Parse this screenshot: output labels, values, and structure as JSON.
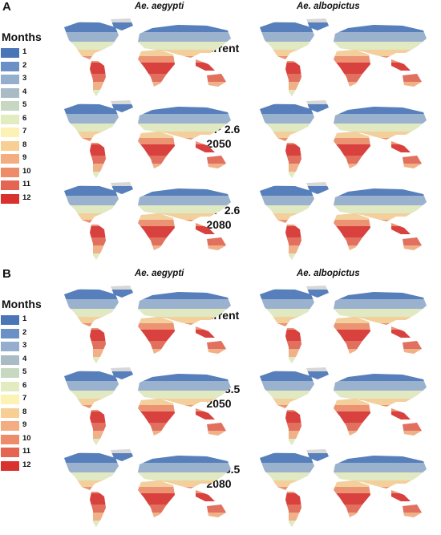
{
  "legend": {
    "title": "Months",
    "items": [
      {
        "label": "1",
        "color": "#4a76b8"
      },
      {
        "label": "2",
        "color": "#6b90c6"
      },
      {
        "label": "3",
        "color": "#95aece"
      },
      {
        "label": "4",
        "color": "#a9bcc6"
      },
      {
        "label": "5",
        "color": "#c6d8c1"
      },
      {
        "label": "6",
        "color": "#e3ecc0"
      },
      {
        "label": "7",
        "color": "#fbf2b4"
      },
      {
        "label": "8",
        "color": "#f7cf95"
      },
      {
        "label": "9",
        "color": "#f4ad80"
      },
      {
        "label": "10",
        "color": "#ee8c69"
      },
      {
        "label": "11",
        "color": "#e46552"
      },
      {
        "label": "12",
        "color": "#d9312e"
      }
    ]
  },
  "panels": [
    {
      "letter": "A",
      "species": [
        "Ae. aegypti",
        "Ae. albopictus"
      ],
      "scenarios": [
        {
          "line1": "Current",
          "line2": ""
        },
        {
          "line1": "RCP 2.6",
          "line2": "2050"
        },
        {
          "line1": "RCP 2.6",
          "line2": "2080"
        }
      ]
    },
    {
      "letter": "B",
      "species": [
        "Ae. aegypti",
        "Ae. albopictus"
      ],
      "scenarios": [
        {
          "line1": "Current",
          "line2": ""
        },
        {
          "line1": "RCP 8.5",
          "line2": "2050"
        },
        {
          "line1": "RCP 8.5",
          "line2": "2080"
        }
      ]
    }
  ]
}
